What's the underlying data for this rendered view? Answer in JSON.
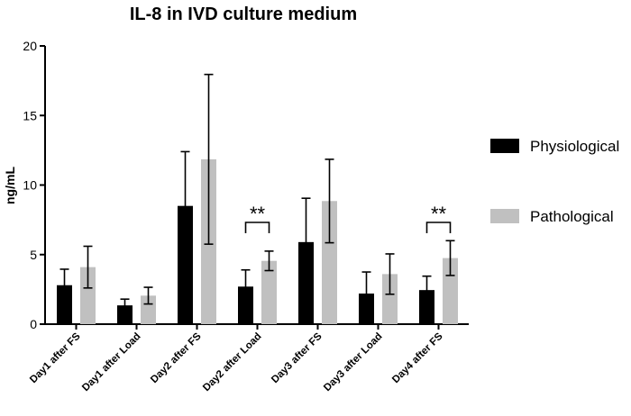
{
  "chart_data": {
    "type": "bar",
    "title": "IL-8 in IVD culture medium",
    "xlabel": "",
    "ylabel": "ng/mL",
    "ylim": [
      0,
      20
    ],
    "yticks": [
      0,
      5,
      10,
      15,
      20
    ],
    "categories": [
      "Day1 after FS",
      "Day1 after Load",
      "Day2 after FS",
      "Day2 after Load",
      "Day3 after FS",
      "Day3 after Load",
      "Day4 after FS"
    ],
    "series": [
      {
        "name": "Physiological",
        "color": "#000000",
        "values": [
          2.8,
          1.35,
          8.5,
          2.7,
          5.9,
          2.2,
          2.45
        ],
        "errors": [
          1.15,
          0.45,
          3.9,
          1.2,
          3.15,
          1.55,
          1.0
        ]
      },
      {
        "name": "Pathological",
        "color": "#c0c0c0",
        "values": [
          4.1,
          2.05,
          11.85,
          4.55,
          8.85,
          3.6,
          4.75
        ],
        "errors": [
          1.5,
          0.6,
          6.1,
          0.7,
          3.0,
          1.45,
          1.25
        ]
      }
    ],
    "annotations": [
      {
        "text": "**",
        "category_index": 3
      },
      {
        "text": "**",
        "category_index": 6
      }
    ],
    "legend_position": "right"
  }
}
